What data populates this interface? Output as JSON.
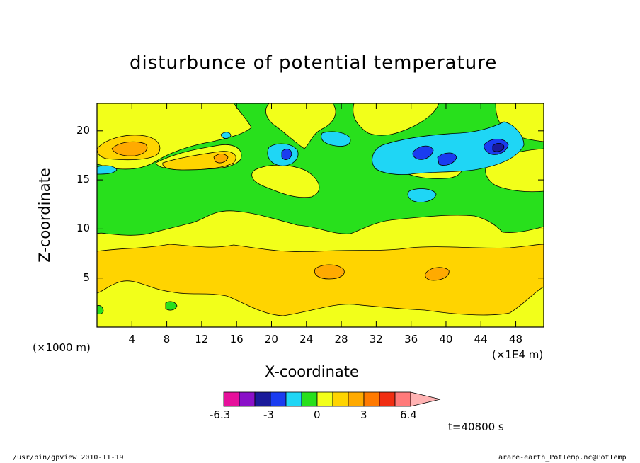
{
  "chart_data": {
    "type": "heatmap",
    "title": "disturbunce of potential temperature",
    "xlabel": "X-coordinate",
    "ylabel": "Z-coordinate",
    "x_unit_left": "(×1000 m)",
    "x_unit_right": "(×1E4 m)",
    "x_ticks": [
      "4",
      "8",
      "12",
      "16",
      "20",
      "24",
      "28",
      "32",
      "36",
      "40",
      "44",
      "48"
    ],
    "y_ticks": [
      "5",
      "10",
      "15",
      "20"
    ],
    "xlim": [
      0,
      51.2
    ],
    "ylim": [
      0,
      22.8
    ],
    "colorbar": {
      "ticks": [
        "-6.3",
        "-3",
        "0",
        "3",
        "6.4"
      ],
      "colors": [
        "#e6109b",
        "#8a10c8",
        "#1a1a9a",
        "#1a3cf0",
        "#1fd6f5",
        "#28e01c",
        "#f2ff1a",
        "#ffd400",
        "#ffaa00",
        "#ff7a00",
        "#f02e12",
        "#ff7a7a",
        "#ffb3b3"
      ]
    },
    "time_label": "t=40800 s",
    "footer_left": "/usr/bin/gpview   2010-11-19",
    "footer_right": "arare-earth_PotTemp.nc@PotTemp",
    "layers": [
      {
        "level": "yellow",
        "color": "#f2ff1a"
      },
      {
        "level": "orange",
        "color": "#ffd400"
      },
      {
        "level": "green",
        "color": "#28e01c"
      },
      {
        "level": "darkorange",
        "color": "#ffaa00"
      },
      {
        "level": "cyan",
        "color": "#1fd6f5"
      },
      {
        "level": "blue",
        "color": "#1a3cf0"
      },
      {
        "level": "navy",
        "color": "#1a1a9a"
      }
    ]
  }
}
